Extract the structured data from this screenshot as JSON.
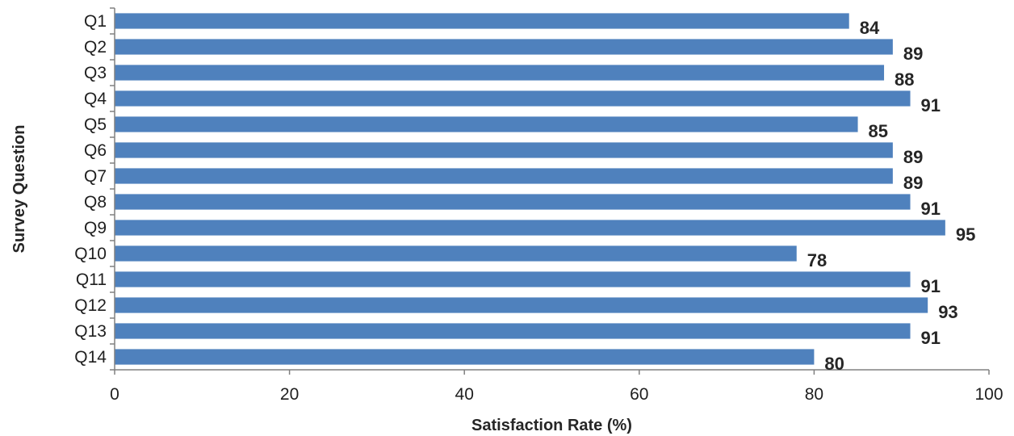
{
  "chart_data": {
    "type": "bar",
    "orientation": "horizontal",
    "categories": [
      "Q1",
      "Q2",
      "Q3",
      "Q4",
      "Q5",
      "Q6",
      "Q7",
      "Q8",
      "Q9",
      "Q10",
      "Q11",
      "Q12",
      "Q13",
      "Q14"
    ],
    "values": [
      84,
      89,
      88,
      91,
      85,
      89,
      89,
      91,
      95,
      78,
      91,
      93,
      91,
      80
    ],
    "title": "",
    "xlabel": "Satisfaction Rate (%)",
    "ylabel": "Survey Question",
    "xlim": [
      0,
      100
    ],
    "xticks": [
      0,
      20,
      40,
      60,
      80,
      100
    ],
    "grid": false,
    "legend": "none",
    "bar_color": "#4f81bd",
    "data_labels": true
  }
}
